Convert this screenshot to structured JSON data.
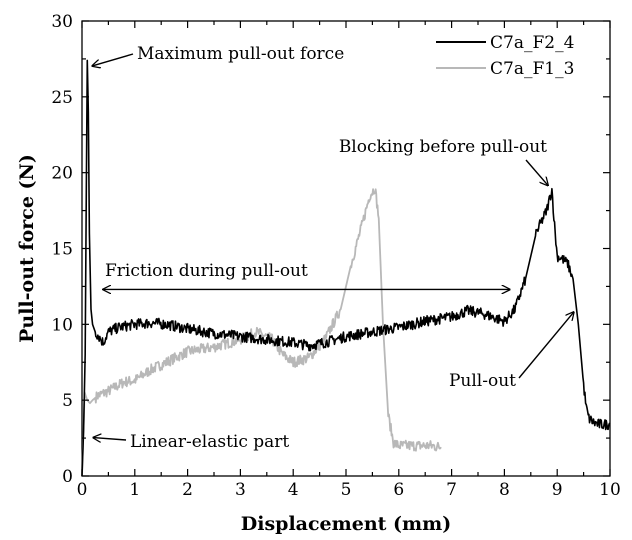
{
  "chart_data": {
    "type": "line",
    "title": "",
    "xlabel": "Displacement (mm)",
    "ylabel": "Pull-out force (N)",
    "xlim": [
      0,
      10
    ],
    "ylim": [
      0,
      30
    ],
    "xticks": [
      0,
      1,
      2,
      3,
      4,
      5,
      6,
      7,
      8,
      9,
      10
    ],
    "yticks": [
      0,
      5,
      10,
      15,
      20,
      25,
      30
    ],
    "grid": false,
    "legend_position": "top-right",
    "series": [
      {
        "name": "C7a_F2_4",
        "color": "#000000",
        "x": [
          0,
          0.03,
          0.06,
          0.08,
          0.1,
          0.12,
          0.14,
          0.17,
          0.2,
          0.25,
          0.3,
          0.4,
          0.5,
          0.7,
          1.0,
          1.3,
          1.6,
          2.0,
          2.5,
          3.0,
          3.5,
          4.0,
          4.3,
          4.6,
          5.0,
          5.5,
          6.0,
          6.5,
          7.0,
          7.3,
          7.6,
          8.0,
          8.2,
          8.4,
          8.6,
          8.8,
          8.9,
          8.95,
          9.0,
          9.1,
          9.2,
          9.3,
          9.4,
          9.5,
          9.55,
          9.6,
          9.7,
          9.8,
          10.0
        ],
        "y": [
          0,
          3,
          8,
          18,
          27.4,
          24,
          16,
          11,
          10,
          9.5,
          9.3,
          8.8,
          9.5,
          9.8,
          10.0,
          10.1,
          10.0,
          9.7,
          9.4,
          9.2,
          9.0,
          8.8,
          8.6,
          8.8,
          9.2,
          9.5,
          9.8,
          10.2,
          10.5,
          10.9,
          10.7,
          10.2,
          11.0,
          13.0,
          16.0,
          17.5,
          18.9,
          16.5,
          14.5,
          14.3,
          14.0,
          13.0,
          10.0,
          6.0,
          4.5,
          3.8,
          3.5,
          3.4,
          3.4
        ]
      },
      {
        "name": "C7a_F1_3",
        "color": "#b8b8b8",
        "x": [
          0,
          0.05,
          0.1,
          0.15,
          0.2,
          0.3,
          0.5,
          0.8,
          1.0,
          1.3,
          1.6,
          2.0,
          2.5,
          3.0,
          3.3,
          3.6,
          3.8,
          4.0,
          4.3,
          4.6,
          4.9,
          5.1,
          5.3,
          5.45,
          5.55,
          5.62,
          5.7,
          5.8,
          5.9,
          6.0,
          6.3,
          6.6,
          6.8
        ],
        "y": [
          0,
          5.5,
          5.0,
          4.8,
          5.0,
          5.3,
          5.6,
          6.2,
          6.3,
          7.0,
          7.5,
          8.2,
          8.5,
          9.0,
          9.5,
          9.0,
          8.0,
          7.5,
          7.8,
          9.0,
          11.0,
          14.0,
          16.5,
          18.5,
          19.0,
          17.0,
          10.0,
          4.0,
          2.2,
          2.0,
          2.0,
          2.0,
          1.9
        ]
      }
    ],
    "annotations": [
      {
        "text": "Maximum pull-out force",
        "target": [
          0.1,
          27.3
        ]
      },
      {
        "text": "Blocking before pull-out",
        "target": [
          8.9,
          18.9
        ]
      },
      {
        "text": "Friction during pull-out",
        "x_range": [
          0.4,
          8.1
        ],
        "y": 12.3
      },
      {
        "text": "Pull-out",
        "target": [
          9.35,
          11.0
        ]
      },
      {
        "text": "Linear-elastic part",
        "target": [
          0.1,
          2.6
        ]
      }
    ]
  }
}
